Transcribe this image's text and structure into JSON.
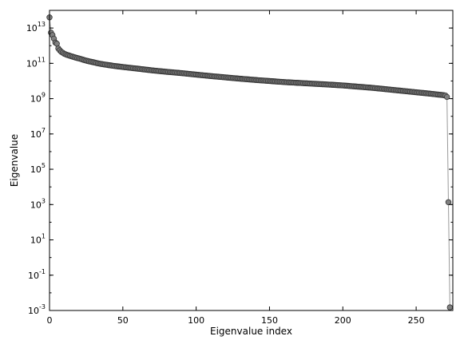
{
  "chart_data": {
    "type": "scatter",
    "title": "",
    "xlabel": "Eigenvalue index",
    "ylabel": "Eigenvalue",
    "xlim": [
      0,
      275
    ],
    "ylim": [
      0.001,
      100000000000000.0
    ],
    "yscale": "log",
    "grid": false,
    "legend": "none",
    "x_ticks": [
      0,
      50,
      100,
      150,
      200,
      250
    ],
    "y_ticks": [
      {
        "value": 0.001,
        "base": "10",
        "exp": "-3"
      },
      {
        "value": 0.1,
        "base": "10",
        "exp": "-1"
      },
      {
        "value": 10,
        "base": "10",
        "exp": "1"
      },
      {
        "value": 1000,
        "base": "10",
        "exp": "3"
      },
      {
        "value": 100000,
        "base": "10",
        "exp": "5"
      },
      {
        "value": 10000000,
        "base": "10",
        "exp": "7"
      },
      {
        "value": 1000000000,
        "base": "10",
        "exp": "9"
      },
      {
        "value": 100000000000,
        "base": "10",
        "exp": "11"
      },
      {
        "value": 10000000000000,
        "base": "10",
        "exp": "13"
      }
    ],
    "series": [
      {
        "style": {
          "marker_fill": "#808080",
          "marker_edge": "#333333",
          "line_color": "#999999"
        },
        "points": [
          [
            0,
            40000000000000.0
          ],
          [
            1,
            5500000000000.0
          ],
          [
            2,
            4000000000000.0
          ],
          [
            3,
            2500000000000.0
          ],
          [
            4,
            1500000000000.0
          ],
          [
            5,
            1300000000000.0
          ],
          [
            6,
            700000000000.0
          ],
          [
            7,
            550000000000.0
          ],
          [
            8,
            450000000000.0
          ],
          [
            9,
            400000000000.0
          ],
          [
            10,
            350000000000.0
          ],
          [
            12,
            300000000000.0
          ],
          [
            15,
            250000000000.0
          ],
          [
            18,
            210000000000.0
          ],
          [
            21,
            180000000000.0
          ],
          [
            24,
            150000000000.0
          ],
          [
            27,
            130000000000.0
          ],
          [
            30,
            115000000000.0
          ],
          [
            33,
            100000000000.0
          ],
          [
            36,
            90000000000.0
          ],
          [
            40,
            80000000000.0
          ],
          [
            45,
            70000000000.0
          ],
          [
            50,
            62000000000.0
          ],
          [
            60,
            50000000000.0
          ],
          [
            70,
            40000000000.0
          ],
          [
            80,
            33000000000.0
          ],
          [
            90,
            28000000000.0
          ],
          [
            100,
            23000000000.0
          ],
          [
            110,
            19000000000.0
          ],
          [
            120,
            16000000000.0
          ],
          [
            130,
            13500000000.0
          ],
          [
            140,
            11500000000.0
          ],
          [
            150,
            10000000000.0
          ],
          [
            160,
            8700000000.0
          ],
          [
            170,
            7800000000.0
          ],
          [
            180,
            7000000000.0
          ],
          [
            190,
            6300000000.0
          ],
          [
            200,
            5600000000.0
          ],
          [
            210,
            4800000000.0
          ],
          [
            220,
            4100000000.0
          ],
          [
            230,
            3400000000.0
          ],
          [
            240,
            2800000000.0
          ],
          [
            250,
            2300000000.0
          ],
          [
            260,
            1900000000.0
          ],
          [
            265,
            1700000000.0
          ],
          [
            268,
            1600000000.0
          ],
          [
            270,
            1500000000.0
          ],
          [
            271,
            1250000000.0
          ],
          [
            273,
            0.0015
          ]
        ]
      }
    ]
  }
}
